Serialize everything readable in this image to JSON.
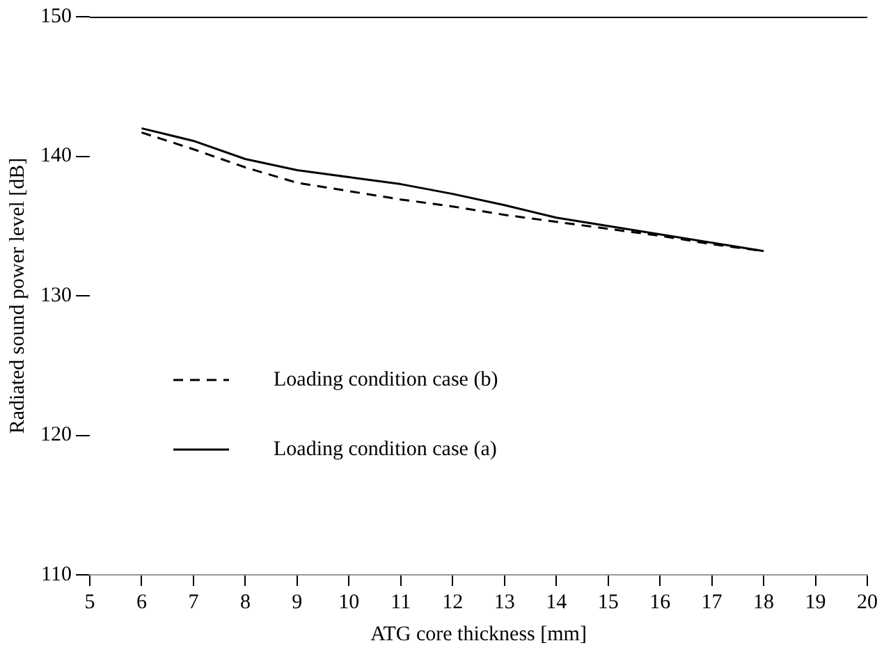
{
  "chart_data": {
    "type": "line",
    "xlabel": "ATG core thickness [mm]",
    "ylabel": "Radiated sound power level [dB]",
    "x": [
      6,
      7,
      8,
      9,
      10,
      11,
      12,
      13,
      14,
      15,
      16,
      17,
      18
    ],
    "series": [
      {
        "name": "Loading condition case (b)",
        "color": "#000000",
        "line_style": "dashed",
        "values": [
          141.7,
          140.5,
          139.2,
          138.1,
          137.5,
          136.9,
          136.4,
          135.8,
          135.3,
          134.8,
          134.3,
          133.7,
          133.2
        ]
      },
      {
        "name": "Loading condition case (a)",
        "color": "#000000",
        "line_style": "solid",
        "values": [
          142.0,
          141.1,
          139.8,
          139.0,
          138.5,
          138.0,
          137.3,
          136.5,
          135.6,
          135.0,
          134.4,
          133.8,
          133.2
        ]
      }
    ],
    "xlim": [
      5,
      20
    ],
    "xticks": [
      5,
      6,
      7,
      8,
      9,
      10,
      11,
      12,
      13,
      14,
      15,
      16,
      17,
      18,
      19,
      20
    ],
    "ylim": [
      110,
      150
    ],
    "yticks": [
      110,
      120,
      130,
      140,
      150
    ],
    "grid": false,
    "legend": "bottom left",
    "marker": "none"
  }
}
